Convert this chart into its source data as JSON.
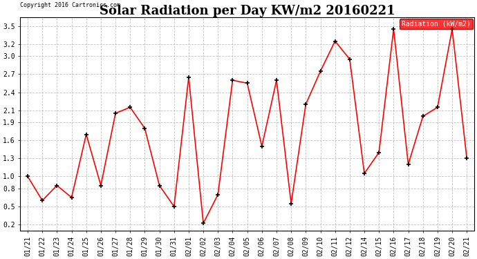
{
  "title": "Solar Radiation per Day KW/m2 20160221",
  "copyright_text": "Copyright 2016 Cartronics.com",
  "legend_label": "Radiation (kW/m2)",
  "dates": [
    "01/21",
    "01/22",
    "01/23",
    "01/24",
    "01/25",
    "01/26",
    "01/27",
    "01/28",
    "01/29",
    "01/30",
    "01/31",
    "02/01",
    "02/02",
    "02/03",
    "02/04",
    "02/05",
    "02/06",
    "02/07",
    "02/08",
    "02/09",
    "02/10",
    "02/11",
    "02/12",
    "02/14",
    "02/15",
    "02/16",
    "02/17",
    "02/18",
    "02/19",
    "02/20",
    "02/21"
  ],
  "values": [
    1.0,
    0.6,
    0.85,
    0.65,
    1.7,
    0.85,
    2.05,
    2.15,
    1.8,
    0.85,
    0.5,
    2.65,
    0.22,
    0.7,
    2.6,
    2.55,
    1.5,
    2.6,
    0.55,
    2.2,
    2.75,
    3.25,
    2.95,
    1.05,
    1.4,
    3.45,
    1.2,
    2.0,
    2.15,
    3.45,
    1.3
  ],
  "line_color": "red",
  "marker_color": "black",
  "bg_color": "white",
  "grid_color": "#bbbbbb",
  "ylim": [
    0.1,
    3.65
  ],
  "yticks": [
    0.2,
    0.5,
    0.8,
    1.0,
    1.3,
    1.6,
    1.9,
    2.1,
    2.4,
    2.7,
    3.0,
    3.2,
    3.5
  ],
  "title_fontsize": 13,
  "axis_fontsize": 7,
  "legend_bg": "red",
  "legend_text_color": "white"
}
